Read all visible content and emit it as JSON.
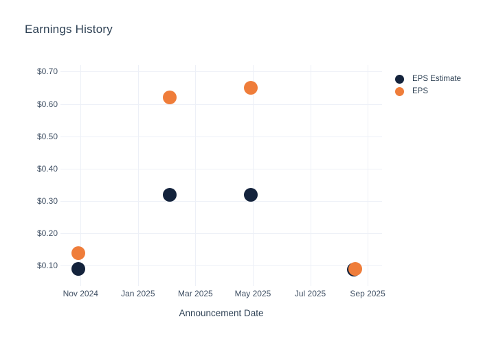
{
  "chart_data": {
    "type": "scatter",
    "title": "Earnings History",
    "xlabel": "Announcement Date",
    "ylabel": "",
    "x_unit": "months since Nov 2024",
    "xlim": [
      -0.7,
      10.5
    ],
    "ylim": [
      0.05,
      0.72
    ],
    "grid": true,
    "legend_position": "top-right",
    "background_color": "#ffffff",
    "gridline_color": "#edf0f7",
    "title_color": "#2e4154",
    "tick_label_color": "#3f4f63",
    "x_ticks": [
      {
        "pos": 0,
        "label": "Nov 2024"
      },
      {
        "pos": 2,
        "label": "Jan 2025"
      },
      {
        "pos": 4,
        "label": "Mar 2025"
      },
      {
        "pos": 6,
        "label": "May 2025"
      },
      {
        "pos": 8,
        "label": "Jul 2025"
      },
      {
        "pos": 10,
        "label": "Sep 2025"
      }
    ],
    "y_ticks": [
      {
        "pos": 0.1,
        "label": "$0.10"
      },
      {
        "pos": 0.2,
        "label": "$0.20"
      },
      {
        "pos": 0.3,
        "label": "$0.30"
      },
      {
        "pos": 0.4,
        "label": "$0.40"
      },
      {
        "pos": 0.5,
        "label": "$0.50"
      },
      {
        "pos": 0.6,
        "label": "$0.60"
      },
      {
        "pos": 0.7,
        "label": "$0.70"
      }
    ],
    "series": [
      {
        "name": "EPS Estimate",
        "color": "#14233c",
        "marker": "circle",
        "marker_size": 20,
        "points": [
          {
            "x": -0.07,
            "y": 0.09,
            "date": "Nov 2024",
            "value_label": "$0.09"
          },
          {
            "x": 3.1,
            "y": 0.32,
            "date": "Feb 2025",
            "value_label": "$0.32"
          },
          {
            "x": 5.93,
            "y": 0.32,
            "date": "May 2025",
            "value_label": "$0.32"
          },
          {
            "x": 9.53,
            "y": 0.089,
            "date": "Aug 2025",
            "value_label": "$0.09"
          }
        ]
      },
      {
        "name": "EPS",
        "color": "#ef7d3a",
        "marker": "circle",
        "marker_size": 20,
        "points": [
          {
            "x": -0.07,
            "y": 0.14,
            "date": "Nov 2024",
            "value_label": "$0.14"
          },
          {
            "x": 3.1,
            "y": 0.62,
            "date": "Feb 2025",
            "value_label": "$0.62"
          },
          {
            "x": 5.93,
            "y": 0.65,
            "date": "May 2025",
            "value_label": "$0.65"
          },
          {
            "x": 9.57,
            "y": 0.091,
            "date": "Aug 2025",
            "value_label": "$0.09"
          }
        ]
      }
    ]
  }
}
